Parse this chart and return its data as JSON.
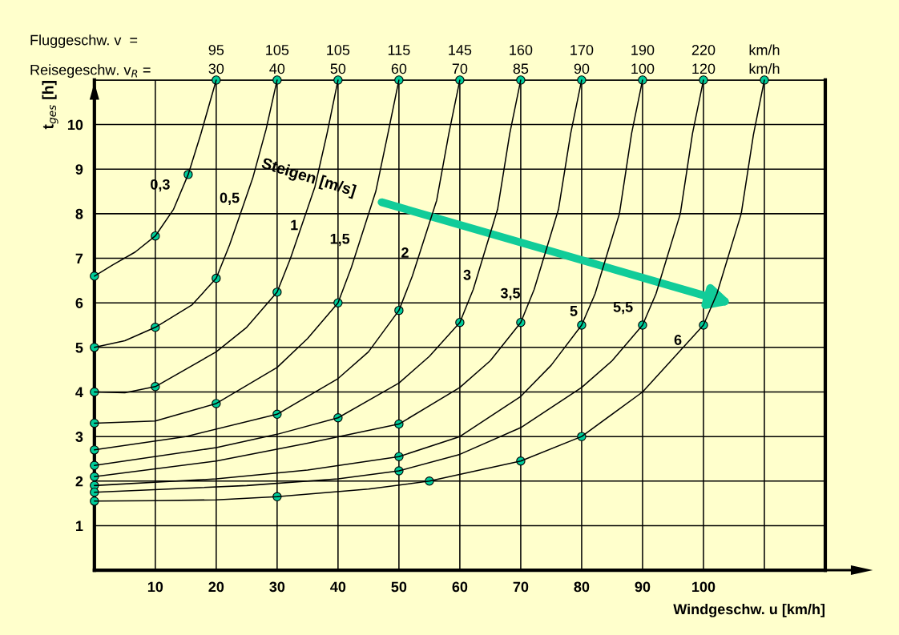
{
  "chart_data": {
    "type": "line",
    "xlabel": "Windgeschw. u [km/h]",
    "ylabel": "t$_{ges}$ [h]",
    "xlim": [
      0,
      120
    ],
    "ylim": [
      0,
      11
    ],
    "xticks": [
      10,
      20,
      30,
      40,
      50,
      60,
      70,
      80,
      90,
      100,
      {
        "value": 110,
        "label": null
      }
    ],
    "yticks": [
      1,
      2,
      3,
      4,
      5,
      6,
      7,
      8,
      9,
      10,
      {
        "value": 11,
        "label": null
      }
    ],
    "grid": true,
    "legend": false,
    "line_style": "solid",
    "series": [
      {
        "color": "#000000",
        "x": [
          0,
          3,
          6.7,
          10,
          13,
          15.4,
          17.5,
          20
        ],
        "values": [
          6.6,
          6.85,
          7.14,
          7.5,
          8.1,
          8.88,
          9.8,
          11
        ]
      },
      {
        "color": "#000000",
        "x": [
          0,
          5,
          10,
          16,
          20,
          22.2,
          26,
          28.2,
          30
        ],
        "values": [
          5.0,
          5.15,
          5.45,
          5.95,
          6.55,
          7.3,
          8.8,
          9.9,
          11
        ]
      },
      {
        "color": "#000000",
        "x": [
          0,
          5,
          10,
          20,
          25,
          30,
          32.2,
          36.2,
          38.2,
          40
        ],
        "values": [
          4.0,
          3.98,
          4.12,
          4.9,
          5.45,
          6.24,
          7.0,
          8.6,
          9.8,
          11
        ]
      },
      {
        "color": "#000000",
        "x": [
          0,
          10,
          20,
          30,
          35,
          40,
          42.2,
          46.2,
          48.2,
          50
        ],
        "values": [
          3.3,
          3.35,
          3.74,
          4.55,
          5.2,
          6.0,
          6.8,
          8.5,
          9.8,
          11
        ]
      },
      {
        "color": "#000000",
        "x": [
          0,
          15,
          30,
          40,
          45,
          50,
          52.2,
          56.2,
          58.2,
          60
        ],
        "values": [
          2.7,
          3.0,
          3.5,
          4.3,
          4.9,
          5.83,
          6.6,
          8.3,
          9.8,
          11
        ]
      },
      {
        "color": "#000000",
        "x": [
          0,
          20,
          30,
          40,
          50,
          55,
          60,
          62.2,
          66.2,
          68.2,
          70
        ],
        "values": [
          2.35,
          2.75,
          3.05,
          3.42,
          4.2,
          4.8,
          5.56,
          6.3,
          8.1,
          9.8,
          11
        ]
      },
      {
        "color": "#000000",
        "x": [
          0,
          20,
          35,
          50,
          60,
          65,
          70,
          72.2,
          76.2,
          78.2,
          80
        ],
        "values": [
          2.1,
          2.45,
          2.85,
          3.28,
          4.1,
          4.7,
          5.56,
          6.3,
          8.1,
          9.8,
          11
        ]
      },
      {
        "color": "#000000",
        "x": [
          0,
          20,
          35,
          50,
          60,
          70,
          75,
          80,
          82.2,
          86.2,
          88.2,
          90
        ],
        "values": [
          1.9,
          2.05,
          2.25,
          2.55,
          3.0,
          3.9,
          4.6,
          5.5,
          6.2,
          8.0,
          9.8,
          11
        ]
      },
      {
        "color": "#000000",
        "x": [
          0,
          25,
          40,
          50,
          60,
          70,
          80,
          85,
          90,
          92.2,
          96.2,
          98.2,
          100
        ],
        "values": [
          1.75,
          1.9,
          2.05,
          2.23,
          2.6,
          3.2,
          4.1,
          4.7,
          5.5,
          6.2,
          8.0,
          9.8,
          11
        ]
      },
      {
        "color": "#000000",
        "x": [
          0,
          10,
          20,
          30,
          45,
          55,
          70,
          80,
          90,
          100,
          102.2,
          106.2,
          108.2,
          110
        ],
        "values": [
          1.55,
          1.56,
          1.58,
          1.65,
          1.82,
          2.0,
          2.45,
          3.0,
          4.0,
          5.5,
          6.2,
          8.0,
          9.77,
          11
        ]
      },
      {
        "type": "scatter",
        "color": "#00cc99",
        "marker": "circle",
        "x": [
          0,
          0,
          0,
          0,
          0,
          0,
          0,
          0,
          0,
          0,
          10,
          15.4,
          10,
          20,
          10,
          30,
          20,
          40,
          30,
          50,
          40,
          60,
          50,
          70,
          50,
          80,
          50,
          90,
          30,
          55,
          70,
          80,
          100,
          20,
          30,
          40,
          50,
          60,
          70,
          80,
          90,
          100,
          110
        ],
        "values": [
          6.6,
          5.0,
          4.0,
          3.3,
          2.7,
          2.35,
          2.1,
          1.9,
          1.75,
          1.55,
          7.5,
          8.88,
          5.45,
          6.55,
          4.12,
          6.24,
          3.74,
          6.0,
          3.5,
          5.83,
          3.42,
          5.56,
          3.28,
          5.56,
          2.55,
          5.5,
          2.23,
          5.5,
          1.65,
          2.0,
          2.45,
          3.0,
          5.5,
          11,
          11,
          11,
          11,
          11,
          11,
          11,
          11,
          11,
          11
        ]
      }
    ],
    "annotations": [
      "Fluggeschw. v  =",
      "Reisegeschw. v$_{R}$ =",
      "Steigen [m/s]",
      "0,3",
      "0,5",
      "1",
      "1,5",
      "2",
      "3",
      "3,5",
      "5",
      "5,5",
      "6",
      {
        "text": "95\n30",
        "x": 20,
        "y": 11
      },
      {
        "text": "105\n40",
        "x": 30,
        "y": 11
      },
      {
        "text": "105\n50",
        "x": 40,
        "y": 11
      },
      {
        "text": "115\n60",
        "x": 50,
        "y": 11
      },
      {
        "text": "145\n70",
        "x": 60,
        "y": 11
      },
      {
        "text": "160\n85",
        "x": 70,
        "y": 11
      },
      {
        "text": "170\n90",
        "x": 80,
        "y": 11
      },
      {
        "text": "190\n100",
        "x": 90,
        "y": 11
      },
      {
        "text": "220\n120",
        "x": 100,
        "y": 11
      },
      {
        "text": "km/h\nkm/h",
        "x": 110,
        "y": 11
      }
    ]
  }
}
